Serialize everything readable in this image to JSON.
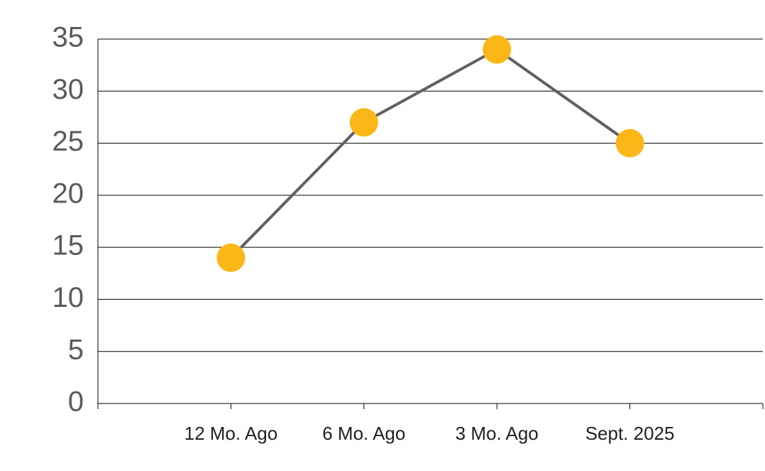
{
  "chart_data": {
    "type": "line",
    "categories": [
      "12 Mo. Ago",
      "6 Mo. Ago",
      "3 Mo. Ago",
      "Sept. 2025"
    ],
    "values": [
      14,
      27,
      34,
      25
    ],
    "color": "#606060",
    "marker_color": "#fbb717",
    "ylim": [
      0,
      35
    ],
    "yticks": [
      0,
      5,
      10,
      15,
      20,
      25,
      30,
      35
    ],
    "grid": true
  }
}
